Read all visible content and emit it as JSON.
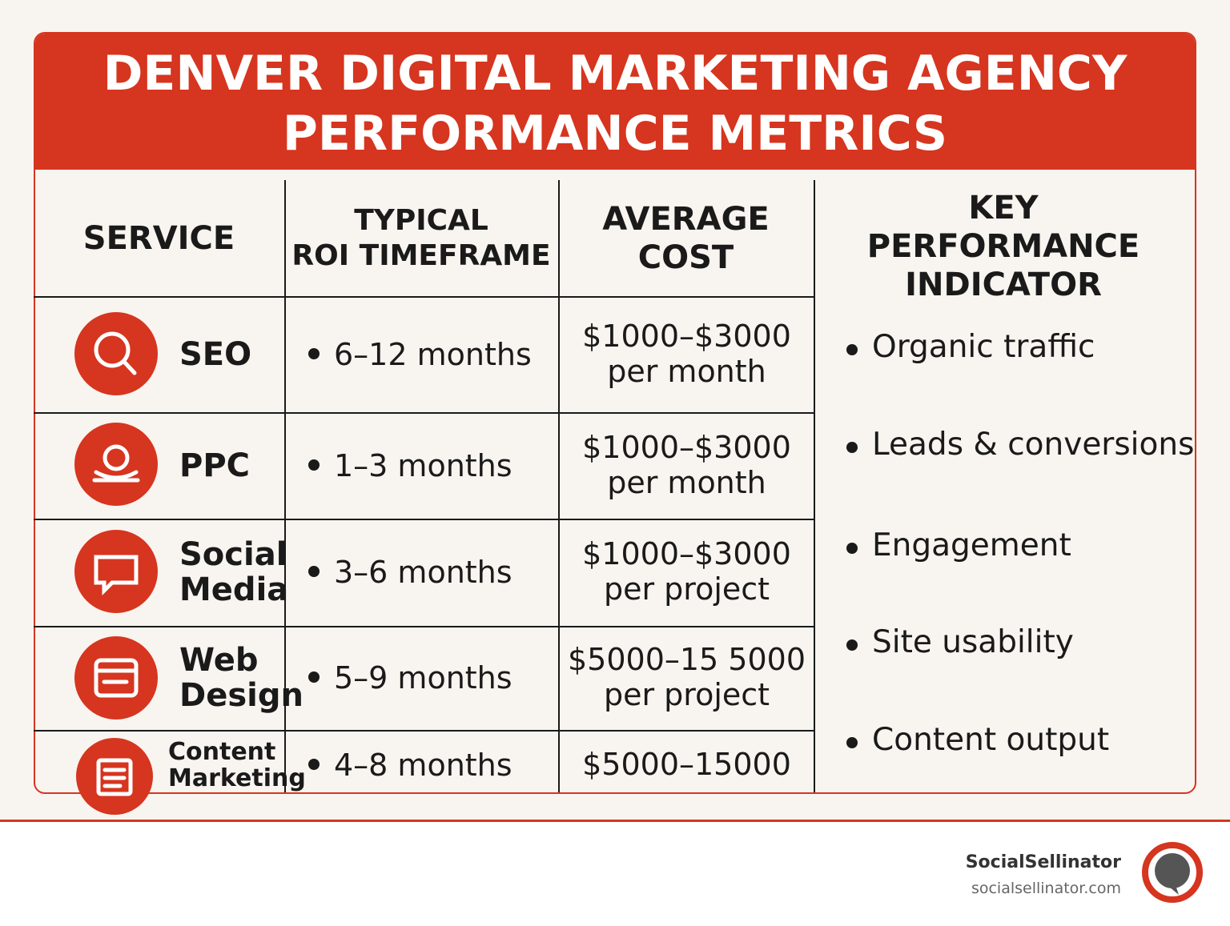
{
  "header": {
    "title": [
      "DENVER DIGITAL MARKETING AGENCY",
      "PERFORMANCE METRICS"
    ]
  },
  "table": {
    "headers": [
      [
        "SERVICE"
      ],
      [
        "TYPICAL",
        "ROI TIMEFRAME"
      ],
      [
        "AVERAGE",
        "COST"
      ],
      [
        "KEY",
        "PERFORMANCE",
        "INDICATOR"
      ]
    ],
    "rows": [
      {
        "service": [
          "SEO"
        ],
        "roi": "6–12 months",
        "cost": [
          "$1000–$3000",
          "per month"
        ]
      },
      {
        "service": [
          "PPC"
        ],
        "roi": "1–3 months",
        "cost": [
          "$1000–$3000",
          "per month"
        ]
      },
      {
        "service": [
          "Social",
          "Media"
        ],
        "roi": "3–6 months",
        "cost": [
          "$1000–$3000",
          "per project"
        ]
      },
      {
        "service": [
          "Web",
          "Design"
        ],
        "roi": "5–9 months",
        "cost": [
          "$5000–15 5000",
          "per project"
        ]
      },
      {
        "service": [
          "Content",
          "Marketing"
        ],
        "roi": "4–8 months",
        "cost": [
          "$5000–15000"
        ]
      }
    ],
    "kpis": [
      "Organic traffic",
      "Leads & conversions",
      "Engagement",
      "Site usability",
      "Content output"
    ]
  },
  "footer": {
    "brand": "SocialSellinator",
    "url": "socialsellinator.com"
  }
}
